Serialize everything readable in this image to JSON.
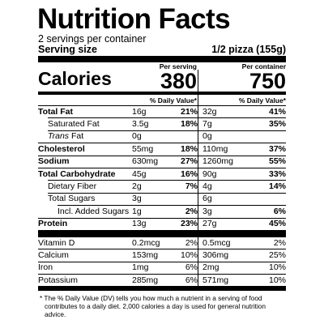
{
  "title": "Nutrition Facts",
  "servings": "2 servings per container",
  "serving_size": {
    "label": "Serving size",
    "value": "1/2 pizza (155g)"
  },
  "calories": {
    "label": "Calories",
    "columns": [
      {
        "heading": "Per serving",
        "value": 380,
        "dv_heading": "% Daily Value*"
      },
      {
        "heading": "Per container",
        "value": 750,
        "dv_heading": "% Daily Value*"
      }
    ]
  },
  "nutrients": [
    {
      "label": "Total Fat",
      "amounts": [
        "16g",
        "32g"
      ],
      "dv": [
        "21%",
        "41%"
      ]
    },
    {
      "label": "Saturated Fat",
      "amounts": [
        "3.5g",
        "7g"
      ],
      "dv": [
        "18%",
        "35%"
      ]
    },
    {
      "label_italic": "Trans",
      "label": "Fat",
      "amounts": [
        "0g",
        "0g"
      ]
    },
    {
      "label": "Cholesterol",
      "amounts": [
        "55mg",
        "110mg"
      ],
      "dv": [
        "18%",
        "37%"
      ]
    },
    {
      "label": "Sodium",
      "amounts": [
        "630mg",
        "1260mg"
      ],
      "dv": [
        "27%",
        "55%"
      ]
    },
    {
      "label": "Total Carbohydrate",
      "amounts": [
        "45g",
        "90g"
      ],
      "dv": [
        "16%",
        "33%"
      ]
    },
    {
      "label": "Dietary Fiber",
      "amounts": [
        "2g",
        "4g"
      ],
      "dv": [
        "7%",
        "14%"
      ]
    },
    {
      "label": "Total Sugars",
      "amounts": [
        "3g",
        "6g"
      ]
    },
    {
      "label": "Incl. Added Sugars",
      "amounts": [
        "1g",
        "3g"
      ],
      "dv": [
        "2%",
        "6%"
      ]
    },
    {
      "label": "Protein",
      "amounts": [
        "13g",
        "27g"
      ],
      "dv": [
        "23%",
        "45%"
      ]
    }
  ],
  "vitamins": [
    {
      "label": "Vitamin D",
      "amounts": [
        "0.2mcg",
        "0.5mcg"
      ],
      "dv": [
        "2%",
        "2%"
      ]
    },
    {
      "label": "Calcium",
      "amounts": [
        "153mg",
        "306mg"
      ],
      "dv": [
        "10%",
        "25%"
      ]
    },
    {
      "label": "Iron",
      "amounts": [
        "1mg",
        "2mg"
      ],
      "dv": [
        "6%",
        "10%"
      ]
    },
    {
      "label": "Potassium",
      "amounts": [
        "285mg",
        "571mg"
      ],
      "dv": [
        "6%",
        "10%"
      ]
    }
  ],
  "footnote": "* The % Daily Value (DV) tells you how much a nutrient in a serving of food contributes to a daily diet. 2,000 calories a day is used for general nutrition advice."
}
